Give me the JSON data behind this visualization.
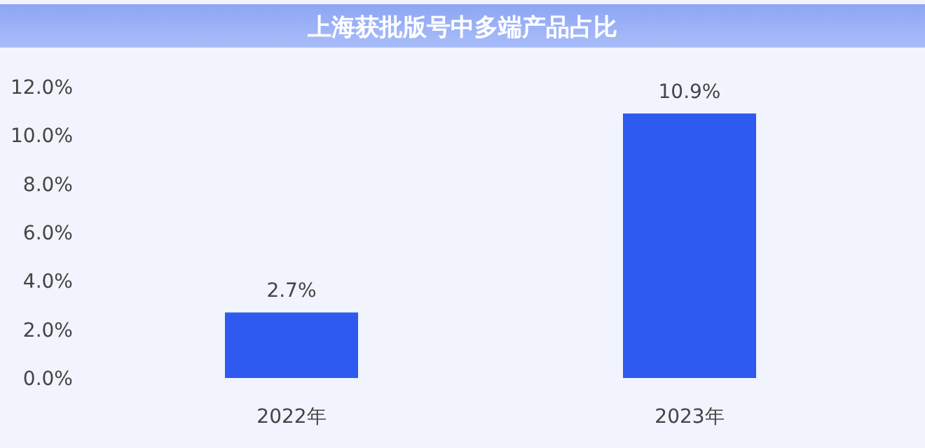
{
  "chart_data": {
    "type": "bar",
    "title": "上海获批版号中多端产品占比",
    "categories": [
      "2022年",
      "2023年"
    ],
    "values": [
      2.7,
      10.9
    ],
    "value_labels": [
      "2.7%",
      "10.9%"
    ],
    "color": "#2f5af0",
    "ylim": [
      0,
      12
    ],
    "yticks": [
      {
        "value": 0,
        "label": "0.0%"
      },
      {
        "value": 2,
        "label": "2.0%"
      },
      {
        "value": 4,
        "label": "4.0%"
      },
      {
        "value": 6,
        "label": "6.0%"
      },
      {
        "value": 8,
        "label": "8.0%"
      },
      {
        "value": 10,
        "label": "10.0%"
      },
      {
        "value": 12,
        "label": "12.0%"
      }
    ],
    "grid": false
  }
}
